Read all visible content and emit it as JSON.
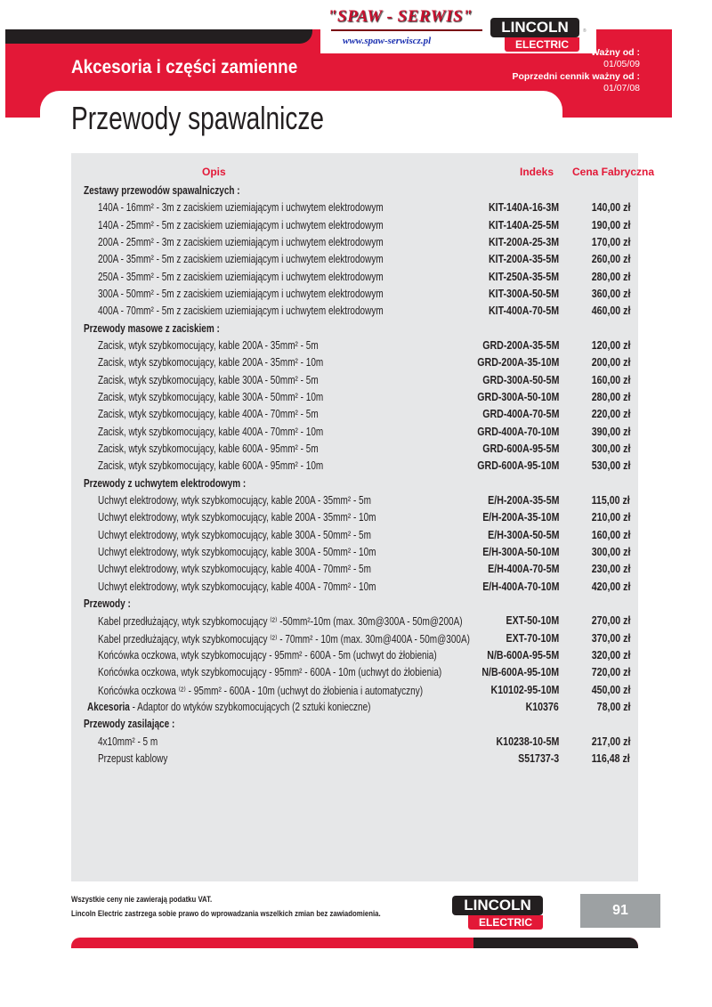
{
  "header": {
    "dealer_logo_text": "\"SPAW - SERWIS\"",
    "dealer_url": "www.spaw-serwiscz.pl",
    "brand_logo": {
      "top": "LINCOLN",
      "bottom": "ELECTRIC"
    },
    "section": "Akcesoria i części zamienne",
    "valid_from_label": "Ważny od :",
    "valid_from": "01/05/09",
    "previous_label": "Poprzedni cennik ważny od :",
    "previous_date": "01/07/08",
    "title": "Przewody spawalnicze"
  },
  "table": {
    "columns": [
      "Opis",
      "Indeks",
      "Cena Fabryczna"
    ],
    "rows": [
      {
        "type": "section",
        "desc": "Zestawy przewodów spawalniczych :"
      },
      {
        "desc": "140A - 16mm² - 3m z zaciskiem uziemiającym i uchwytem elektrodowym",
        "index": "KIT-140A-16-3M",
        "price": "140,00 zł"
      },
      {
        "desc": "140A - 25mm² - 5m z zaciskiem uziemiającym i uchwytem elektrodowym",
        "index": "KIT-140A-25-5M",
        "price": "190,00 zł"
      },
      {
        "desc": "200A - 25mm² - 3m z zaciskiem uziemiającym i uchwytem elektrodowym",
        "index": "KIT-200A-25-3M",
        "price": "170,00 zł"
      },
      {
        "desc": "200A - 35mm² - 5m z zaciskiem uziemiającym i uchwytem elektrodowym",
        "index": "KIT-200A-35-5M",
        "price": "260,00 zł"
      },
      {
        "desc": "250A - 35mm² - 5m z zaciskiem uziemiającym i uchwytem elektrodowym",
        "index": "KIT-250A-35-5M",
        "price": "280,00 zł"
      },
      {
        "desc": "300A - 50mm² - 5m z zaciskiem uziemiającym i uchwytem elektrodowym",
        "index": "KIT-300A-50-5M",
        "price": "360,00 zł"
      },
      {
        "desc": "400A - 70mm² - 5m z zaciskiem uziemiającym i uchwytem elektrodowym",
        "index": "KIT-400A-70-5M",
        "price": "460,00 zł"
      },
      {
        "type": "section",
        "desc": "Przewody masowe z zaciskiem :"
      },
      {
        "desc": "Zacisk, wtyk szybkomocujący, kable 200A - 35mm² - 5m",
        "index": "GRD-200A-35-5M",
        "price": "120,00 zł"
      },
      {
        "desc": "Zacisk, wtyk szybkomocujący, kable 200A - 35mm² - 10m",
        "index": "GRD-200A-35-10M",
        "price": "200,00 zł"
      },
      {
        "desc": "Zacisk, wtyk szybkomocujący, kable 300A - 50mm² - 5m",
        "index": "GRD-300A-50-5M",
        "price": "160,00 zł"
      },
      {
        "desc": "Zacisk, wtyk szybkomocujący, kable 300A - 50mm² - 10m",
        "index": "GRD-300A-50-10M",
        "price": "280,00 zł"
      },
      {
        "desc": "Zacisk, wtyk szybkomocujący, kable 400A - 70mm² - 5m",
        "index": "GRD-400A-70-5M",
        "price": "220,00 zł"
      },
      {
        "desc": "Zacisk, wtyk szybkomocujący, kable 400A - 70mm² - 10m",
        "index": "GRD-400A-70-10M",
        "price": "390,00 zł"
      },
      {
        "desc": "Zacisk, wtyk szybkomocujący, kable 600A - 95mm² - 5m",
        "index": "GRD-600A-95-5M",
        "price": "300,00 zł"
      },
      {
        "desc": "Zacisk, wtyk szybkomocujący, kable 600A - 95mm² - 10m",
        "index": "GRD-600A-95-10M",
        "price": "530,00 zł"
      },
      {
        "type": "section",
        "desc": "Przewody z uchwytem elektrodowym :"
      },
      {
        "desc": "Uchwyt elektrodowy, wtyk szybkomocujący, kable 200A - 35mm² - 5m",
        "index": "E/H-200A-35-5M",
        "price": "115,00 zł"
      },
      {
        "desc": "Uchwyt elektrodowy, wtyk szybkomocujący, kable 200A - 35mm² - 10m",
        "index": "E/H-200A-35-10M",
        "price": "210,00 zł"
      },
      {
        "desc": "Uchwyt elektrodowy, wtyk szybkomocujący, kable 300A - 50mm² - 5m",
        "index": "E/H-300A-50-5M",
        "price": "160,00 zł"
      },
      {
        "desc": "Uchwyt elektrodowy, wtyk szybkomocujący, kable 300A - 50mm² - 10m",
        "index": "E/H-300A-50-10M",
        "price": "300,00 zł"
      },
      {
        "desc": "Uchwyt elektrodowy, wtyk szybkomocujący, kable 400A - 70mm² - 5m",
        "index": "E/H-400A-70-5M",
        "price": "230,00 zł"
      },
      {
        "desc": "Uchwyt elektrodowy, wtyk szybkomocujący, kable 400A - 70mm² - 10m",
        "index": "E/H-400A-70-10M",
        "price": "420,00 zł"
      },
      {
        "type": "section",
        "desc": "Przewody :"
      },
      {
        "desc": "Kabel przedłużający, wtyk szybkomocujący ⁽²⁾ -50mm²-10m (max. 30m@300A - 50m@200A)",
        "index": "EXT-50-10M",
        "price": "270,00 zł"
      },
      {
        "desc": "Kabel przedłużający, wtyk szybkomocujący ⁽²⁾ - 70mm² - 10m (max. 30m@400A - 50m@300A)",
        "index": "EXT-70-10M",
        "price": "370,00 zł"
      },
      {
        "desc": "Końcówka oczkowa, wtyk szybkomocujący - 95mm² - 600A -  5m (uchwyt do żłobienia)",
        "index": "N/B-600A-95-5M",
        "price": "320,00 zł"
      },
      {
        "desc": "Końcówka oczkowa, wtyk szybkomocujący - 95mm² - 600A -  10m (uchwyt do żłobienia)",
        "index": "N/B-600A-95-10M",
        "price": "720,00 zł"
      },
      {
        "desc": "Końcówka oczkowa ⁽²⁾  - 95mm² - 600A -  10m (uchwyt do żłobienia i automatyczny)",
        "index": "K10102-95-10M",
        "price": "450,00 zł"
      },
      {
        "type": "accessory",
        "label": "Akcesoria",
        "desc": " - Adaptor do wtyków szybkomocujących (2 sztuki konieczne)",
        "index": "K10376",
        "price": "78,00 zł"
      },
      {
        "type": "section",
        "desc": "Przewody zasilające :"
      },
      {
        "desc": "4x10mm² - 5 m",
        "index": "K10238-10-5M",
        "price": "217,00 zł"
      },
      {
        "desc": "Przepust kablowy",
        "index": "S51737-3",
        "price": "116,48 zł"
      }
    ]
  },
  "footer": {
    "note1": "Wszystkie ceny nie zawierają podatku VAT.",
    "note2": "Lincoln Electric zastrzega sobie prawo do wprowadzania wszelkich zmian bez zawiadomienia.",
    "page_number": "91"
  },
  "colors": {
    "brand_red": "#e31837",
    "dark": "#231f20",
    "table_bg": "#e6e7e8",
    "page_box": "#9da1a3"
  }
}
